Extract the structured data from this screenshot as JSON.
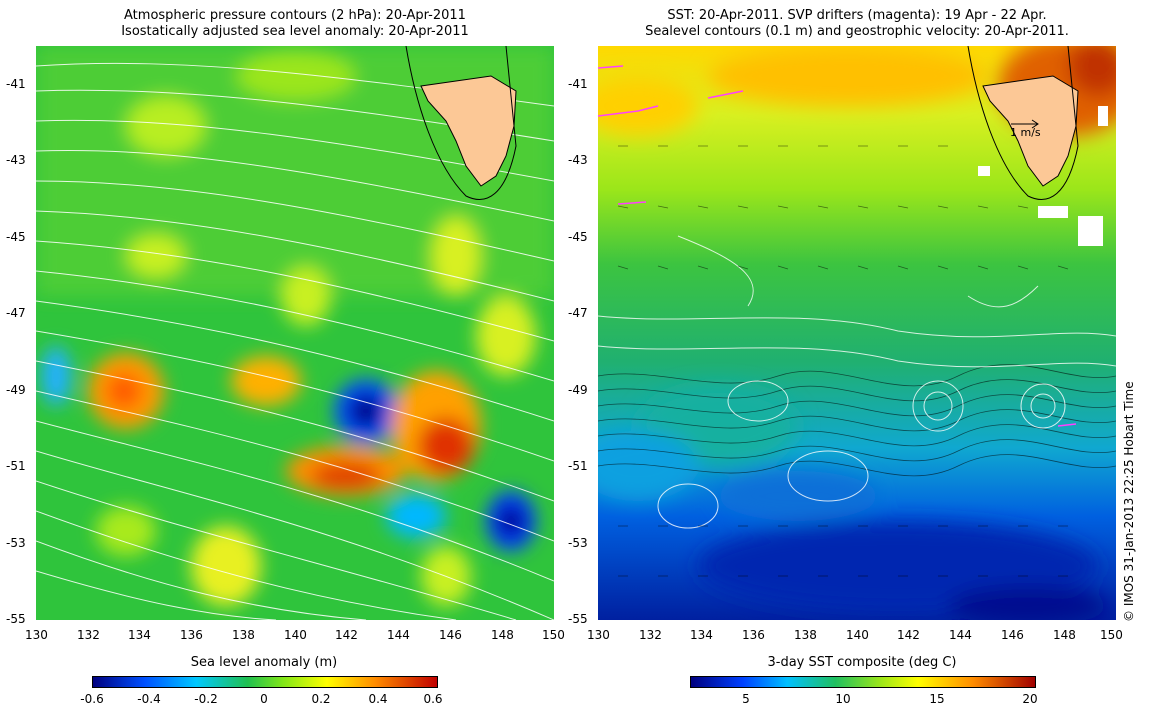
{
  "left_panel": {
    "title_line1": "Atmospheric pressure contours (2 hPa): 20-Apr-2011",
    "title_line2": "Isostatically adjusted sea level anomaly: 20-Apr-2011",
    "colorbar_title": "Sea level anomaly (m)",
    "colorbar_ticks": [
      "-0.6",
      "-0.4",
      "-0.2",
      "0",
      "0.2",
      "0.4",
      "0.6"
    ]
  },
  "right_panel": {
    "title_line1": "SST: 20-Apr-2011. SVP drifters (magenta): 19 Apr - 22 Apr.",
    "title_line2": "Sealevel contours (0.1 m) and geostrophic velocity: 20-Apr-2011.",
    "colorbar_title": "3-day SST composite (deg C)",
    "colorbar_ticks": [
      "5",
      "10",
      "15",
      "20"
    ],
    "velocity_scale_label": "1 m/s"
  },
  "axes": {
    "x_ticks": [
      "130",
      "132",
      "134",
      "136",
      "138",
      "140",
      "142",
      "144",
      "146",
      "148",
      "150"
    ],
    "y_ticks": [
      "-41",
      "-43",
      "-45",
      "-47",
      "-49",
      "-51",
      "-53",
      "-55"
    ]
  },
  "credit": "© IMOS 31-Jan-2013 22:25 Hobart Time",
  "colors": {
    "land": "#fcc896",
    "sla_scale": [
      "#00007f",
      "#0050ff",
      "#00c8ff",
      "#20c050",
      "#7fe61a",
      "#ffff00",
      "#ff8c00",
      "#c00000"
    ],
    "sst_scale": [
      "#00007f",
      "#0040ff",
      "#00c0ff",
      "#20c060",
      "#9be61a",
      "#ffff00",
      "#ff8c00",
      "#a00000"
    ]
  }
}
